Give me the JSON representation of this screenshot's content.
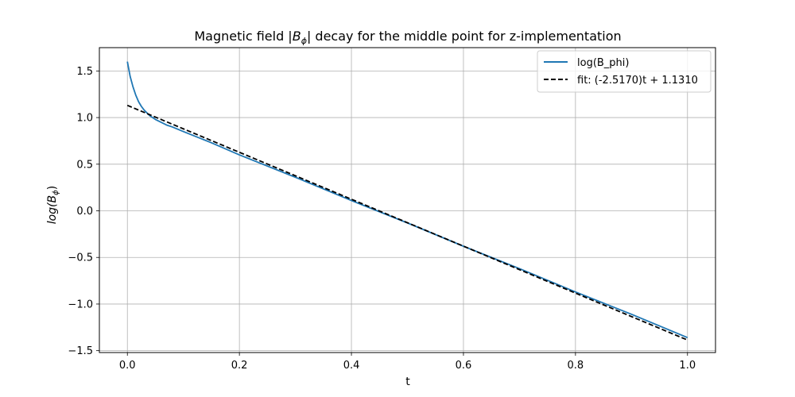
{
  "chart_data": {
    "type": "line",
    "title_prefix": "Magnetic field |",
    "title_math_base": "B",
    "title_math_sub": "ϕ",
    "title_suffix": "| decay for the middle point for z-implementation",
    "xlabel": "t",
    "ylabel_prefix": "log(",
    "ylabel_base": "B",
    "ylabel_sub": "ϕ",
    "ylabel_suffix": ")",
    "xlim": [
      -0.05,
      1.05
    ],
    "ylim": [
      -1.52,
      1.75
    ],
    "x_ticks": [
      0.0,
      0.2,
      0.4,
      0.6,
      0.8,
      1.0
    ],
    "x_tick_labels": [
      "0.0",
      "0.2",
      "0.4",
      "0.6",
      "0.8",
      "1.0"
    ],
    "y_ticks": [
      -1.5,
      -1.0,
      -0.5,
      0.0,
      0.5,
      1.0,
      1.5
    ],
    "y_tick_labels": [
      "−1.5",
      "−1.0",
      "−0.5",
      "0.0",
      "0.5",
      "1.0",
      "1.5"
    ],
    "grid": true,
    "legend_position": "top-right",
    "series": [
      {
        "name": "log(B_phi)",
        "color": "#1f77b4",
        "style": "solid",
        "x": [
          0.0,
          0.005,
          0.01,
          0.015,
          0.02,
          0.025,
          0.03,
          0.04,
          0.05,
          0.06,
          0.07,
          0.08,
          0.1,
          0.15,
          0.2,
          0.3,
          0.4,
          0.5,
          0.6,
          0.7,
          0.8,
          0.9,
          1.0
        ],
        "y": [
          1.6,
          1.44,
          1.33,
          1.24,
          1.17,
          1.12,
          1.08,
          1.02,
          0.98,
          0.95,
          0.92,
          0.9,
          0.85,
          0.73,
          0.6,
          0.36,
          0.11,
          -0.13,
          -0.38,
          -0.62,
          -0.87,
          -1.11,
          -1.36
        ]
      },
      {
        "name": "fit: (-2.5170)t + 1.1310",
        "color": "#000000",
        "style": "dashed",
        "slope": -2.517,
        "intercept": 1.131,
        "x": [
          0.0,
          1.0
        ]
      }
    ]
  }
}
